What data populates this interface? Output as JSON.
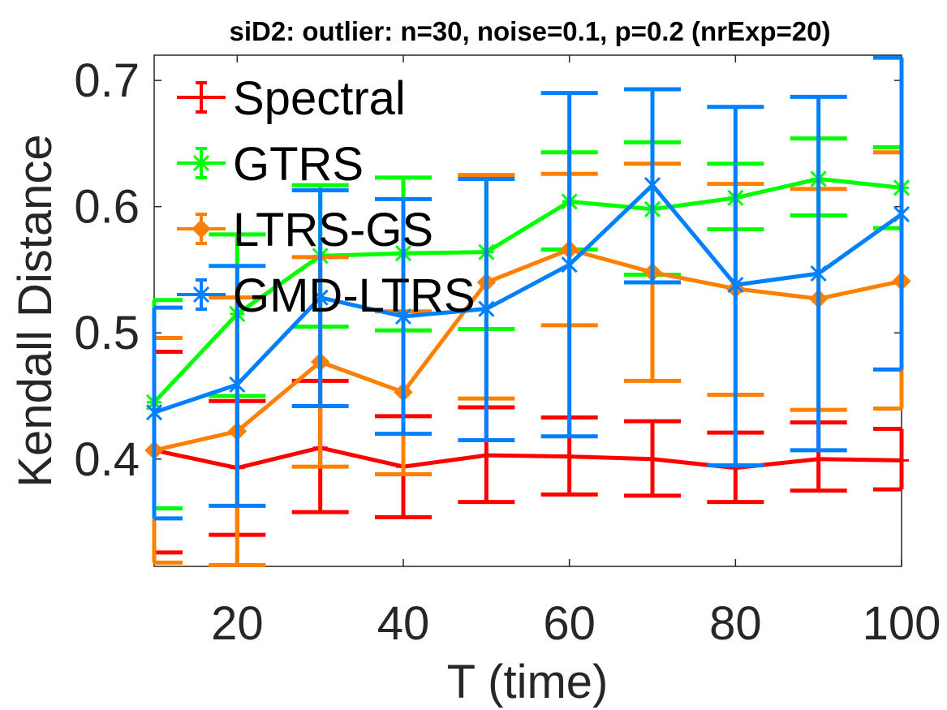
{
  "chart_data": {
    "type": "line",
    "title": "siD2: outlier: n=30, noise=0.1, p=0.2 (nrExp=20)",
    "xlabel": "T (time)",
    "ylabel": "Kendall Distance",
    "xlim": [
      10,
      100
    ],
    "ylim": [
      0.315,
      0.72
    ],
    "x": [
      10,
      20,
      30,
      40,
      50,
      60,
      70,
      80,
      90,
      100
    ],
    "xticks": [
      20,
      40,
      60,
      80,
      100
    ],
    "yticks": [
      0.4,
      0.5,
      0.6,
      0.7
    ],
    "ytick_labels": [
      "0.4",
      "0.5",
      "0.6",
      "0.7"
    ],
    "xtick_labels": [
      "20",
      "40",
      "60",
      "80",
      "100"
    ],
    "error_bars": true,
    "grid": false,
    "legend_position": "top-left",
    "series": [
      {
        "name": "Spectral",
        "color": "#ff0000",
        "marker": "plus",
        "values": [
          0.407,
          0.393,
          0.409,
          0.394,
          0.403,
          0.402,
          0.4,
          0.393,
          0.4,
          0.399
        ],
        "lower": [
          0.326,
          0.34,
          0.358,
          0.354,
          0.366,
          0.372,
          0.371,
          0.366,
          0.375,
          0.376
        ],
        "upper": [
          0.485,
          0.446,
          0.462,
          0.434,
          0.441,
          0.433,
          0.43,
          0.421,
          0.429,
          0.424
        ]
      },
      {
        "name": "GTRS",
        "color": "#00ff00",
        "marker": "asterisk",
        "values": [
          0.445,
          0.515,
          0.561,
          0.563,
          0.564,
          0.604,
          0.598,
          0.607,
          0.622,
          0.615
        ],
        "lower": [
          0.361,
          0.45,
          0.505,
          0.502,
          0.503,
          0.566,
          0.546,
          0.582,
          0.593,
          0.583
        ],
        "upper": [
          0.526,
          0.578,
          0.617,
          0.623,
          0.625,
          0.643,
          0.651,
          0.634,
          0.654,
          0.647
        ]
      },
      {
        "name": "LTRS-GS",
        "color": "#ff8000",
        "marker": "diamond",
        "values": [
          0.407,
          0.422,
          0.477,
          0.453,
          0.54,
          0.566,
          0.548,
          0.535,
          0.527,
          0.541
        ],
        "lower": [
          0.318,
          0.316,
          0.394,
          0.388,
          0.448,
          0.506,
          0.462,
          0.451,
          0.439,
          0.44
        ],
        "upper": [
          0.496,
          0.528,
          0.56,
          0.517,
          0.625,
          0.626,
          0.634,
          0.618,
          0.614,
          0.643
        ]
      },
      {
        "name": "GMD-LTRS",
        "color": "#0080ff",
        "marker": "x",
        "values": [
          0.437,
          0.459,
          0.528,
          0.513,
          0.519,
          0.554,
          0.617,
          0.538,
          0.547,
          0.594
        ],
        "lower": [
          0.353,
          0.363,
          0.442,
          0.42,
          0.415,
          0.418,
          0.54,
          0.395,
          0.407,
          0.471
        ],
        "upper": [
          0.52,
          0.553,
          0.613,
          0.606,
          0.622,
          0.69,
          0.693,
          0.679,
          0.687,
          0.718
        ]
      }
    ]
  }
}
